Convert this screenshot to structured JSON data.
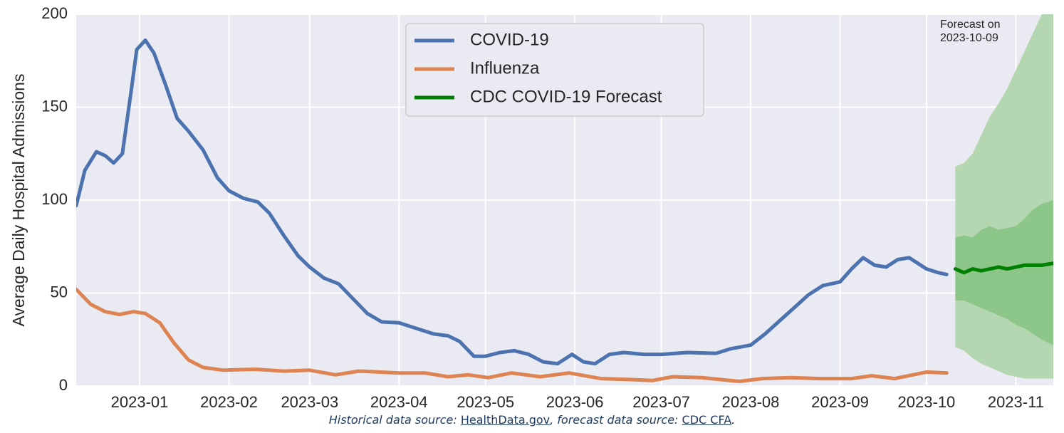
{
  "chart_data": {
    "type": "line",
    "ylabel": "Average Daily Hospital Admissions",
    "xlim": [
      "2022-12-10",
      "2023-11-14"
    ],
    "xticks": [
      "2023-01",
      "2023-02",
      "2023-03",
      "2023-04",
      "2023-05",
      "2023-06",
      "2023-07",
      "2023-08",
      "2023-09",
      "2023-10",
      "2023-11"
    ],
    "ylim": [
      0,
      200
    ],
    "yticks": [
      0,
      50,
      100,
      150,
      200
    ],
    "grid": true,
    "legend": "upper center",
    "annotation": [
      "Forecast on",
      "2023-10-09"
    ],
    "series": [
      {
        "name": "COVID-19",
        "color": "#4c72b0",
        "x": [
          "2022-12-10",
          "2022-12-13",
          "2022-12-17",
          "2022-12-20",
          "2022-12-23",
          "2022-12-26",
          "2022-12-29",
          "2022-12-31",
          "2023-01-03",
          "2023-01-06",
          "2023-01-10",
          "2023-01-14",
          "2023-01-18",
          "2023-01-23",
          "2023-01-28",
          "2023-02-01",
          "2023-02-06",
          "2023-02-11",
          "2023-02-15",
          "2023-02-20",
          "2023-02-25",
          "2023-03-01",
          "2023-03-06",
          "2023-03-11",
          "2023-03-16",
          "2023-03-21",
          "2023-03-26",
          "2023-04-01",
          "2023-04-07",
          "2023-04-13",
          "2023-04-18",
          "2023-04-22",
          "2023-04-27",
          "2023-05-01",
          "2023-05-06",
          "2023-05-11",
          "2023-05-16",
          "2023-05-21",
          "2023-05-26",
          "2023-05-31",
          "2023-06-04",
          "2023-06-08",
          "2023-06-13",
          "2023-06-18",
          "2023-06-25",
          "2023-07-01",
          "2023-07-10",
          "2023-07-20",
          "2023-07-25",
          "2023-08-01",
          "2023-08-06",
          "2023-08-11",
          "2023-08-16",
          "2023-08-21",
          "2023-08-26",
          "2023-09-01",
          "2023-09-05",
          "2023-09-09",
          "2023-09-13",
          "2023-09-17",
          "2023-09-21",
          "2023-09-25",
          "2023-10-01",
          "2023-10-05",
          "2023-10-08"
        ],
        "values": [
          97,
          116,
          126,
          124,
          120,
          125,
          158,
          181,
          186,
          179,
          162,
          144,
          137,
          127,
          112,
          105,
          101,
          99,
          93,
          81,
          70,
          64,
          58,
          55,
          47,
          39,
          34.5,
          34,
          31,
          28,
          27,
          24,
          16,
          16,
          18,
          19,
          17,
          13,
          12,
          17,
          13,
          12,
          17,
          18,
          17,
          17,
          18,
          17.6,
          20,
          22,
          28,
          35,
          42,
          49,
          54,
          56,
          63,
          69,
          65,
          64,
          68,
          69,
          63,
          61,
          60
        ]
      },
      {
        "name": "Influenza",
        "color": "#dd8452",
        "x": [
          "2022-12-10",
          "2022-12-15",
          "2022-12-20",
          "2022-12-25",
          "2022-12-30",
          "2023-01-03",
          "2023-01-08",
          "2023-01-13",
          "2023-01-18",
          "2023-01-23",
          "2023-01-30",
          "2023-02-10",
          "2023-02-20",
          "2023-03-01",
          "2023-03-10",
          "2023-03-18",
          "2023-04-01",
          "2023-04-10",
          "2023-04-18",
          "2023-04-25",
          "2023-05-02",
          "2023-05-10",
          "2023-05-20",
          "2023-05-30",
          "2023-06-10",
          "2023-06-20",
          "2023-06-28",
          "2023-07-05",
          "2023-07-15",
          "2023-07-28",
          "2023-08-05",
          "2023-08-15",
          "2023-08-25",
          "2023-09-05",
          "2023-09-12",
          "2023-09-20",
          "2023-10-01",
          "2023-10-08"
        ],
        "values": [
          52,
          44,
          40,
          38.5,
          40,
          39,
          34,
          23,
          14,
          10,
          8.5,
          9,
          8,
          8.5,
          6,
          8,
          7,
          7,
          5,
          6,
          4.5,
          7,
          5,
          7,
          4,
          3.5,
          3,
          5,
          4.5,
          2.5,
          4,
          4.5,
          4,
          4,
          5.5,
          4,
          7.5,
          7
        ]
      },
      {
        "name": "CDC COVID-19 Forecast",
        "color": "#008000",
        "x": [
          "2023-10-11",
          "2023-10-14",
          "2023-10-17",
          "2023-10-20",
          "2023-10-23",
          "2023-10-26",
          "2023-10-29",
          "2023-11-01",
          "2023-11-04",
          "2023-11-07",
          "2023-11-10",
          "2023-11-14"
        ],
        "values": [
          63,
          61,
          63,
          62,
          63,
          64,
          63,
          64,
          65,
          65,
          65,
          66
        ],
        "intervals": [
          {
            "color": "#b4d6b0",
            "lower": [
              21,
              19,
              15,
              12,
              10,
              8,
              6,
              5,
              4,
              4,
              4,
              4
            ],
            "upper": [
              118,
              120,
              125,
              135,
              145,
              152,
              160,
              170,
              180,
              190,
              200,
              205
            ]
          },
          {
            "color": "#8cc689",
            "lower": [
              46,
              46,
              44,
              42,
              40,
              38,
              36,
              33,
              31,
              28,
              25,
              22
            ],
            "upper": [
              80,
              81,
              80,
              84,
              86,
              84,
              85,
              86,
              90,
              95,
              98,
              100
            ]
          }
        ]
      }
    ],
    "source": [
      {
        "text": "Historical data source: "
      },
      {
        "text": "HealthData.gov",
        "link": true
      },
      {
        "text": ", forecast data source: "
      },
      {
        "text": "CDC CFA",
        "link": true
      },
      {
        "text": "."
      }
    ]
  }
}
